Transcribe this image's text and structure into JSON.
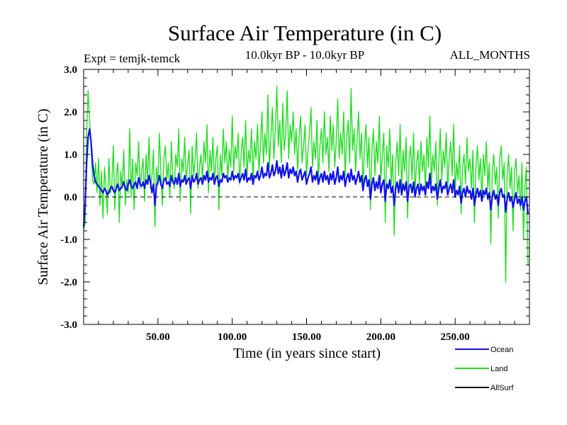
{
  "chart_data": {
    "type": "line",
    "title": "Surface Air Temperature (in C)",
    "subtitle_left": "Expt = temjk-temck",
    "subtitle_center": "10.0kyr BP - 10.0kyr BP",
    "subtitle_right": "ALL_MONTHS",
    "xlabel": "Time (in years since start)",
    "ylabel": "Surface Air Temperature (in C)",
    "xlim": [
      0,
      300
    ],
    "ylim": [
      -3.0,
      3.0
    ],
    "x_ticks": [
      50,
      100,
      150,
      200,
      250
    ],
    "x_tick_labels": [
      "50.00",
      "100.00",
      "150.00",
      "200.00",
      "250.00"
    ],
    "y_ticks": [
      3.0,
      2.0,
      1.0,
      0.0,
      -1.0,
      -2.0,
      -3.0
    ],
    "y_tick_labels": [
      "3.0",
      "2.0",
      "1.0",
      "0.0",
      "-1.0",
      "-2.0",
      "-3.0"
    ],
    "zero_line": 0.0,
    "series": [
      {
        "name": "Land",
        "color": "#22dd22",
        "x_start": 0,
        "x_step": 1,
        "values": [
          -0.8,
          -0.6,
          1.5,
          2.5,
          1.8,
          1.2,
          0.4,
          0.3,
          0.8,
          0.1,
          0.9,
          -0.2,
          0.6,
          -0.5,
          0.7,
          0.2,
          -0.4,
          0.9,
          0.1,
          0.3,
          1.2,
          -0.3,
          0.5,
          0.8,
          -0.6,
          0.6,
          0.2,
          1.1,
          -0.2,
          0.4,
          0.1,
          1.6,
          0.0,
          0.9,
          -0.3,
          0.8,
          0.5,
          1.3,
          0.2,
          0.6,
          0.9,
          -0.1,
          1.0,
          0.4,
          1.4,
          0.2,
          0.5,
          1.1,
          -0.7,
          0.7,
          0.3,
          1.5,
          0.6,
          -0.2,
          0.9,
          1.2,
          0.4,
          0.8,
          0.0,
          1.3,
          0.5,
          0.2,
          1.0,
          0.7,
          1.6,
          -0.1,
          0.9,
          0.6,
          1.4,
          0.3,
          0.8,
          1.1,
          -0.4,
          1.2,
          0.5,
          0.9,
          1.5,
          0.2,
          0.7,
          1.0,
          0.4,
          1.3,
          0.8,
          1.7,
          0.1,
          1.1,
          0.6,
          1.4,
          0.3,
          0.9,
          1.2,
          -0.3,
          1.0,
          0.5,
          1.6,
          0.8,
          1.3,
          0.4,
          1.1,
          0.7,
          1.9,
          0.6,
          1.2,
          0.9,
          1.5,
          0.3,
          1.0,
          1.4,
          0.7,
          1.8,
          0.5,
          1.1,
          0.8,
          1.6,
          0.4,
          1.3,
          0.9,
          1.7,
          0.6,
          1.2,
          2.0,
          0.8,
          1.5,
          1.0,
          2.4,
          0.7,
          1.4,
          2.1,
          0.9,
          1.6,
          2.6,
          1.2,
          1.8,
          0.8,
          2.2,
          1.1,
          1.5,
          2.5,
          0.9,
          1.7,
          1.3,
          2.0,
          1.0,
          1.6,
          0.6,
          1.4,
          1.9,
          0.8,
          1.2,
          1.7,
          0.5,
          1.1,
          1.5,
          2.1,
          0.7,
          1.3,
          0.9,
          1.8,
          0.4,
          1.2,
          1.6,
          0.8,
          2.0,
          1.0,
          1.4,
          0.6,
          1.9,
          1.1,
          1.7,
          0.7,
          1.3,
          2.3,
          0.9,
          1.5,
          1.0,
          2.0,
          0.5,
          1.4,
          1.8,
          0.8,
          2.55,
          1.1,
          1.6,
          0.6,
          1.3,
          2.0,
          0.9,
          1.5,
          0.2,
          1.2,
          1.7,
          0.7,
          1.4,
          -0.3,
          1.1,
          1.6,
          0.5,
          1.3,
          0.8,
          1.9,
          0.4,
          1.0,
          1.5,
          -0.6,
          1.2,
          0.7,
          1.6,
          0.3,
          1.0,
          -0.9,
          0.8,
          1.3,
          0.5,
          1.7,
          0.2,
          1.1,
          0.6,
          1.4,
          -0.5,
          0.9,
          1.2,
          0.4,
          1.5,
          0.1,
          0.8,
          1.1,
          0.3,
          1.3,
          0.6,
          1.0,
          0.2,
          1.4,
          0.7,
          1.9,
          0.3,
          1.0,
          0.6,
          1.3,
          -0.2,
          0.8,
          1.6,
          0.4,
          1.1,
          0.7,
          1.5,
          0.2,
          0.9,
          1.3,
          0.5,
          1.7,
          0.1,
          0.8,
          0.4,
          1.2,
          -0.4,
          0.7,
          1.0,
          0.3,
          1.4,
          0.6,
          0.9,
          0.2,
          1.1,
          -0.6,
          0.7,
          1.2,
          0.4,
          0.9,
          -0.1,
          1.0,
          0.5,
          1.3,
          0.2,
          0.8,
          -1.1,
          0.6,
          1.0,
          0.3,
          0.7,
          -0.5,
          0.9,
          1.2,
          0.4,
          0.8,
          -2.0,
          0.5,
          1.0,
          0.2,
          0.7,
          -0.8,
          0.6,
          0.9,
          0.1,
          0.5,
          -0.3,
          0.8,
          -1.0,
          0.3,
          0.7,
          -1.6
        ]
      },
      {
        "name": "Ocean",
        "color": "#1010ee",
        "x_start": 0,
        "x_step": 1,
        "values": [
          -0.7,
          -0.2,
          0.8,
          1.4,
          1.6,
          1.3,
          0.8,
          0.5,
          0.35,
          0.3,
          0.25,
          0.2,
          0.15,
          0.1,
          0.2,
          0.15,
          0.05,
          0.1,
          0.2,
          0.25,
          0.15,
          0.1,
          0.2,
          0.3,
          0.15,
          0.2,
          0.25,
          0.35,
          0.2,
          0.15,
          0.3,
          0.4,
          0.25,
          0.2,
          0.3,
          0.35,
          0.2,
          0.45,
          0.3,
          0.25,
          0.35,
          0.2,
          0.4,
          0.3,
          0.5,
          0.35,
          0.1,
          0.3,
          -0.2,
          0.25,
          0.35,
          0.5,
          0.3,
          0.2,
          0.4,
          0.45,
          0.3,
          0.35,
          0.25,
          0.5,
          0.35,
          0.3,
          0.45,
          0.3,
          0.55,
          0.25,
          0.4,
          0.35,
          0.5,
          0.3,
          0.4,
          0.45,
          0.2,
          0.5,
          0.35,
          0.4,
          0.55,
          0.3,
          0.4,
          0.45,
          0.3,
          0.5,
          0.4,
          0.6,
          0.35,
          0.45,
          0.4,
          0.55,
          0.3,
          0.45,
          0.5,
          0.25,
          0.4,
          0.35,
          0.55,
          0.45,
          0.5,
          0.35,
          0.45,
          0.4,
          0.6,
          0.4,
          0.5,
          0.45,
          0.55,
          0.35,
          0.45,
          0.55,
          0.4,
          0.65,
          0.35,
          0.45,
          0.4,
          0.55,
          0.3,
          0.5,
          0.45,
          0.6,
          0.4,
          0.5,
          0.7,
          0.45,
          0.55,
          0.5,
          0.8,
          0.45,
          0.55,
          0.75,
          0.5,
          0.6,
          0.85,
          0.55,
          0.7,
          0.45,
          0.75,
          0.5,
          0.6,
          0.8,
          0.45,
          0.65,
          0.55,
          0.7,
          0.5,
          0.6,
          0.35,
          0.55,
          0.65,
          0.4,
          0.5,
          0.6,
          0.3,
          0.45,
          0.55,
          0.7,
          0.35,
          0.5,
          0.4,
          0.6,
          0.3,
          0.45,
          0.55,
          0.35,
          0.6,
          0.4,
          0.5,
          0.3,
          0.55,
          0.4,
          0.6,
          0.3,
          0.45,
          0.7,
          0.35,
          0.5,
          0.4,
          0.6,
          0.25,
          0.45,
          0.55,
          0.35,
          0.65,
          0.4,
          0.5,
          0.3,
          0.45,
          0.6,
          0.35,
          0.5,
          0.15,
          0.4,
          0.5,
          0.25,
          0.4,
          -0.05,
          0.3,
          0.45,
          0.15,
          0.35,
          0.2,
          0.5,
          0.1,
          0.3,
          0.4,
          -0.1,
          0.3,
          0.2,
          0.4,
          0.1,
          0.25,
          -0.2,
          0.2,
          0.35,
          0.1,
          0.4,
          0.05,
          0.3,
          0.15,
          0.35,
          -0.1,
          0.25,
          0.3,
          0.1,
          0.35,
          0.0,
          0.2,
          0.3,
          0.05,
          0.3,
          0.15,
          0.25,
          0.05,
          0.35,
          0.2,
          0.55,
          0.1,
          0.25,
          0.15,
          0.3,
          -0.05,
          0.2,
          0.4,
          0.1,
          0.25,
          0.2,
          0.35,
          0.05,
          0.2,
          0.3,
          0.1,
          0.4,
          0.0,
          0.15,
          0.05,
          0.25,
          -0.15,
          0.1,
          0.2,
          0.0,
          0.25,
          0.1,
          0.15,
          -0.05,
          0.2,
          -0.2,
          0.05,
          0.2,
          0.0,
          0.15,
          -0.1,
          0.15,
          0.05,
          0.2,
          -0.05,
          0.1,
          -0.3,
          0.0,
          0.15,
          -0.05,
          0.05,
          -0.2,
          0.1,
          0.2,
          0.0,
          0.05,
          -0.35,
          -0.05,
          0.1,
          -0.1,
          0.0,
          -0.25,
          -0.05,
          0.1,
          -0.15,
          -0.05,
          -0.2,
          0.0,
          -0.3,
          -0.1,
          0.0,
          -0.4
        ]
      }
    ],
    "legend": [
      {
        "name": "Ocean",
        "color": "#1010ee"
      },
      {
        "name": "Land",
        "color": "#22dd22"
      },
      {
        "name": "AllSurf",
        "color": "#000000"
      }
    ]
  }
}
